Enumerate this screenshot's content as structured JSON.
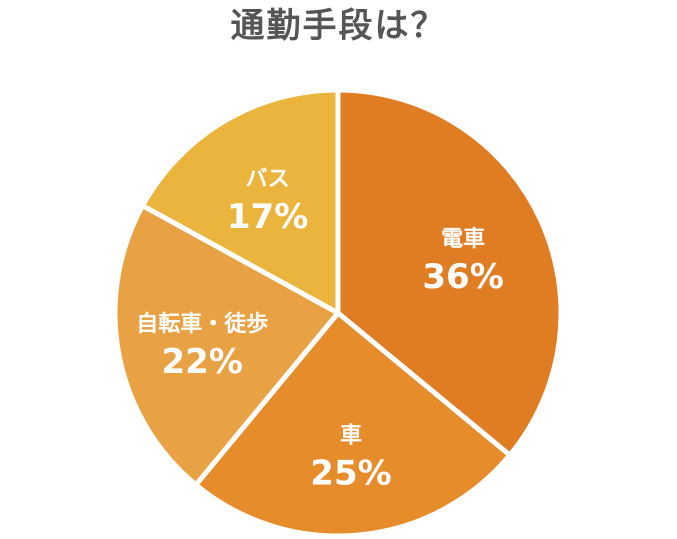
{
  "chart_data": {
    "type": "pie",
    "title": "通勤手段は？",
    "start_angle_deg": 0,
    "direction": "clockwise",
    "slices": [
      {
        "label": "電車",
        "value": 36,
        "value_label": "36%",
        "color": "#E07C22"
      },
      {
        "label": "車",
        "value": 25,
        "value_label": "25%",
        "color": "#E68C2B"
      },
      {
        "label": "自転車・徒歩",
        "value": 22,
        "value_label": "22%",
        "color": "#E8A244"
      },
      {
        "label": "バス",
        "value": 17,
        "value_label": "17%",
        "color": "#EAB43D"
      }
    ]
  }
}
